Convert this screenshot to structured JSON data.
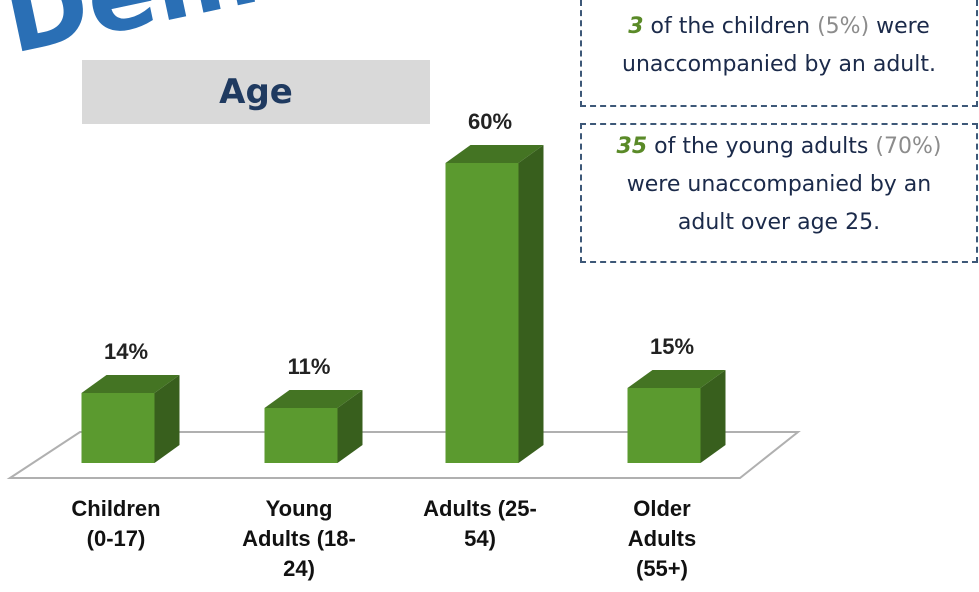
{
  "banner": "Dem",
  "chart_data": {
    "type": "bar3d",
    "title": "Age",
    "categories": [
      "Children (0-17)",
      "Young Adults (18-24)",
      "Adults (25-54)",
      "Older Adults (55+)"
    ],
    "values": [
      14,
      11,
      60,
      15
    ],
    "value_labels": [
      "14%",
      "11%",
      "60%",
      "15%"
    ],
    "color": "#5b9a2f"
  },
  "annotations": [
    {
      "parts": [
        "3",
        " of the children ",
        "(5%)",
        " were unaccompanied by an adult."
      ]
    },
    {
      "parts": [
        "35",
        " of the young adults ",
        "(70%)",
        " were unaccompanied by an adult over age 25."
      ]
    }
  ]
}
